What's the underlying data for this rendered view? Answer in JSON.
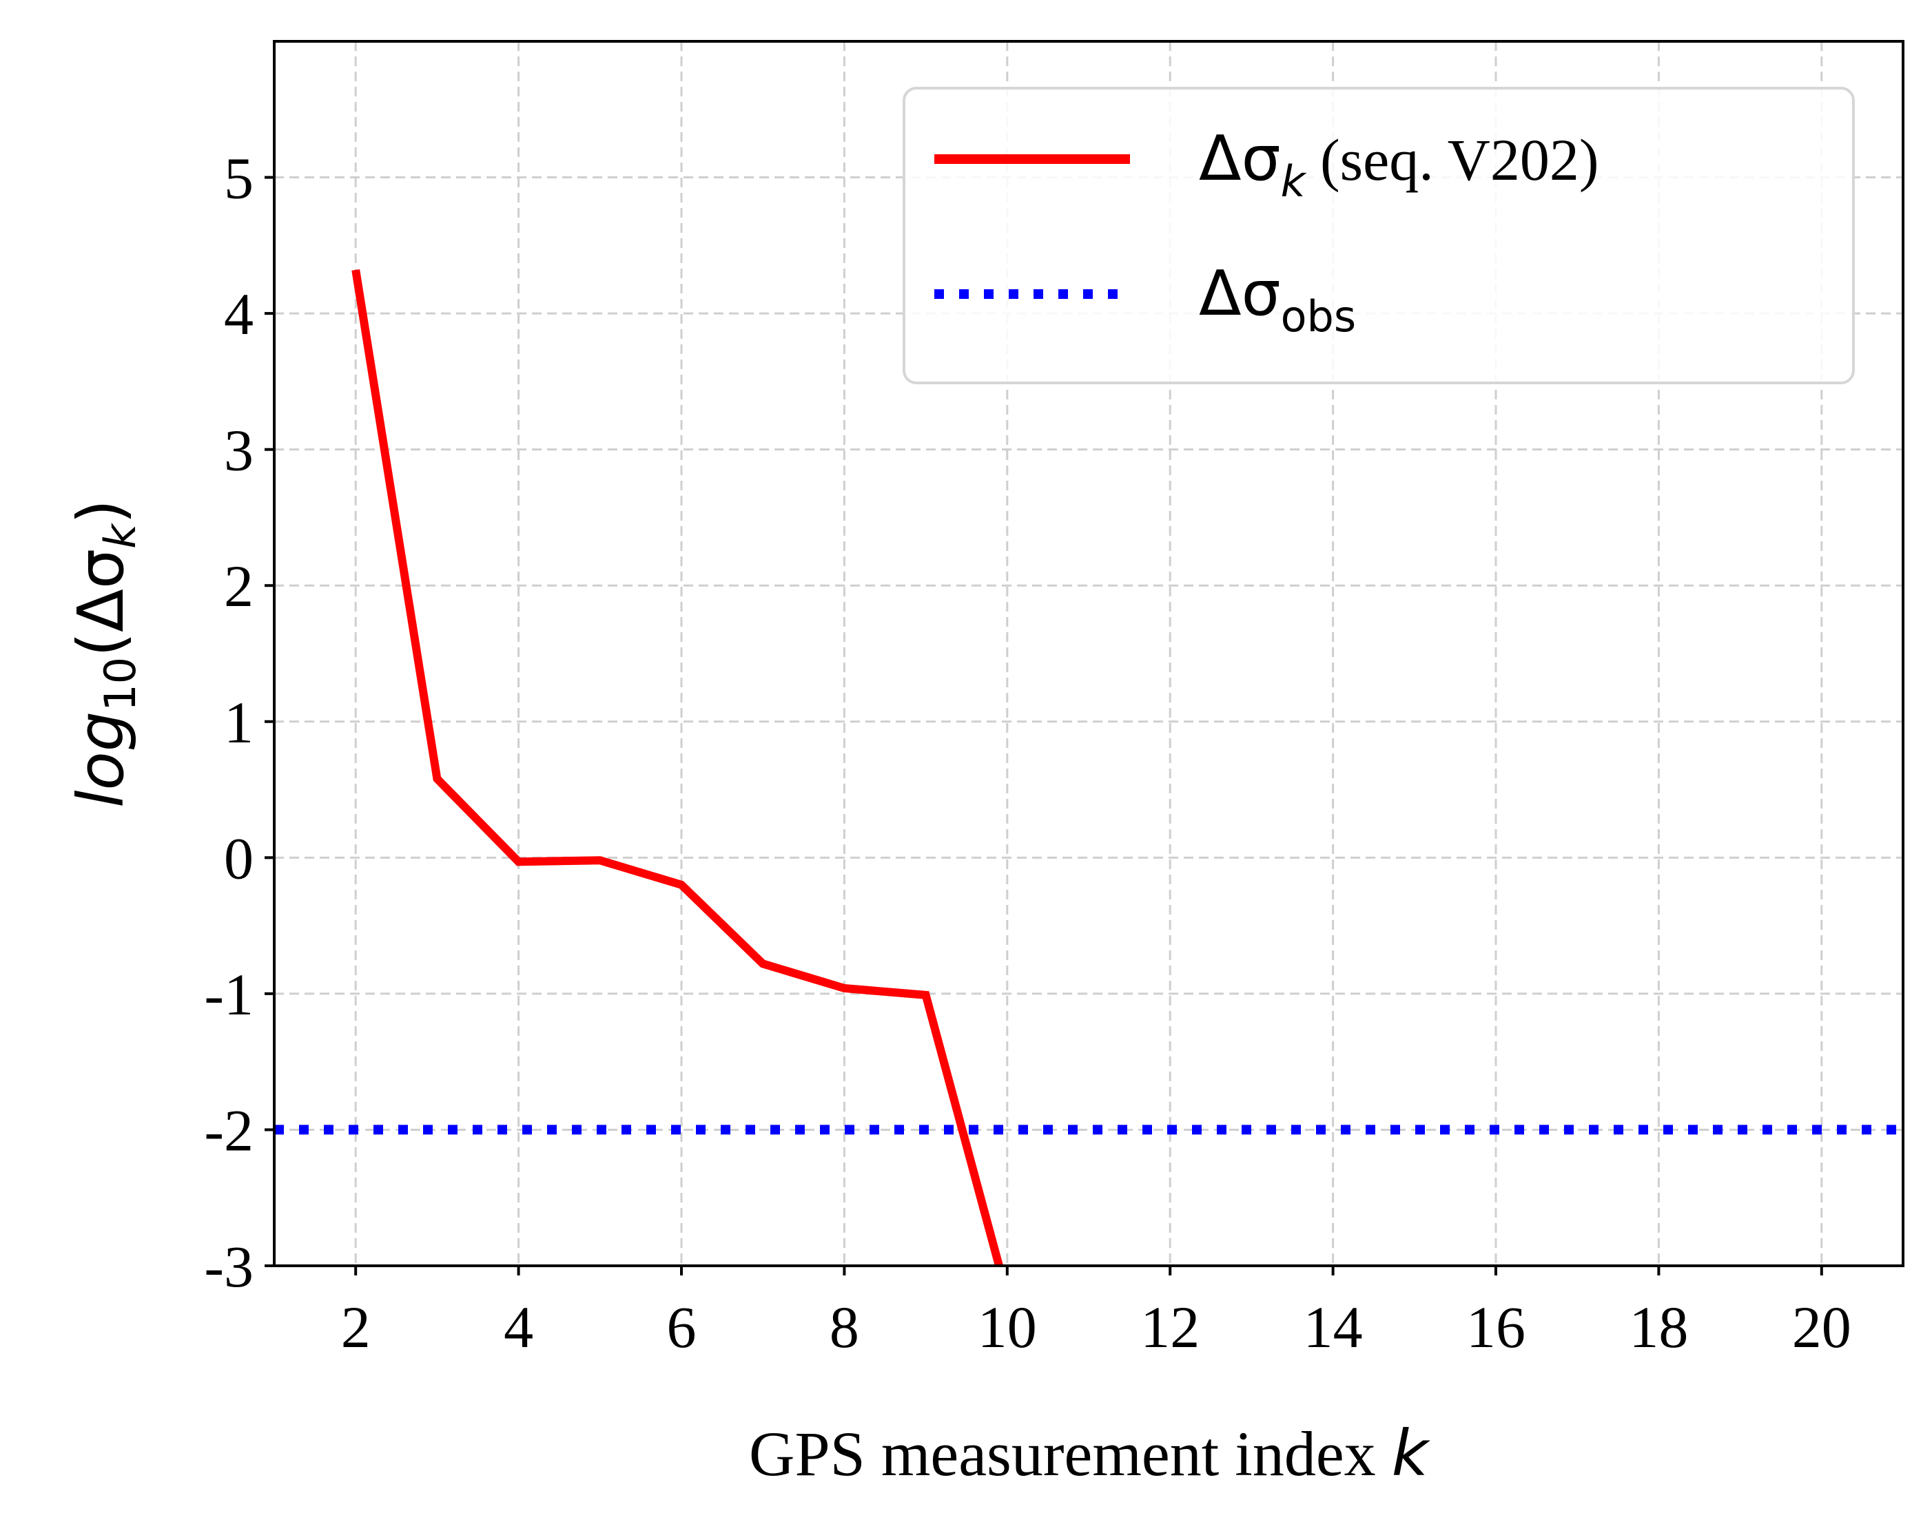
{
  "chart_data": {
    "type": "line",
    "xlabel": {
      "text": "GPS measurement index ",
      "var": "k"
    },
    "ylabel": {
      "fn": "log",
      "sub": "10",
      "open": "(Δσ",
      "sub2": "k",
      "close": ")"
    },
    "xlim": [
      1,
      21
    ],
    "ylim": [
      -3,
      6
    ],
    "xticks": [
      2,
      4,
      6,
      8,
      10,
      12,
      14,
      16,
      18,
      20
    ],
    "yticks": [
      -3,
      -2,
      -1,
      0,
      1,
      2,
      3,
      4,
      5
    ],
    "ytick_labels": [
      "-3",
      "-2",
      "-1",
      "0",
      "1",
      "2",
      "3",
      "4",
      "5"
    ],
    "grid": true,
    "legend_position": "top-right",
    "series": [
      {
        "legend_main": "Δσ",
        "legend_sub": "k",
        "legend_suffix": " (seq. V202)",
        "color": "#ff0000",
        "style": "solid",
        "x": [
          2,
          3,
          4,
          5,
          6,
          7,
          8,
          9,
          9.9
        ],
        "y": [
          4.32,
          0.58,
          -0.03,
          -0.02,
          -0.2,
          -0.78,
          -0.96,
          -1.01,
          -3.0
        ]
      },
      {
        "legend_main": "Δσ",
        "legend_sub": "obs",
        "legend_suffix": "",
        "color": "#0000ff",
        "style": "dotted",
        "x": [
          1,
          21
        ],
        "y": [
          -2,
          -2
        ]
      }
    ]
  }
}
